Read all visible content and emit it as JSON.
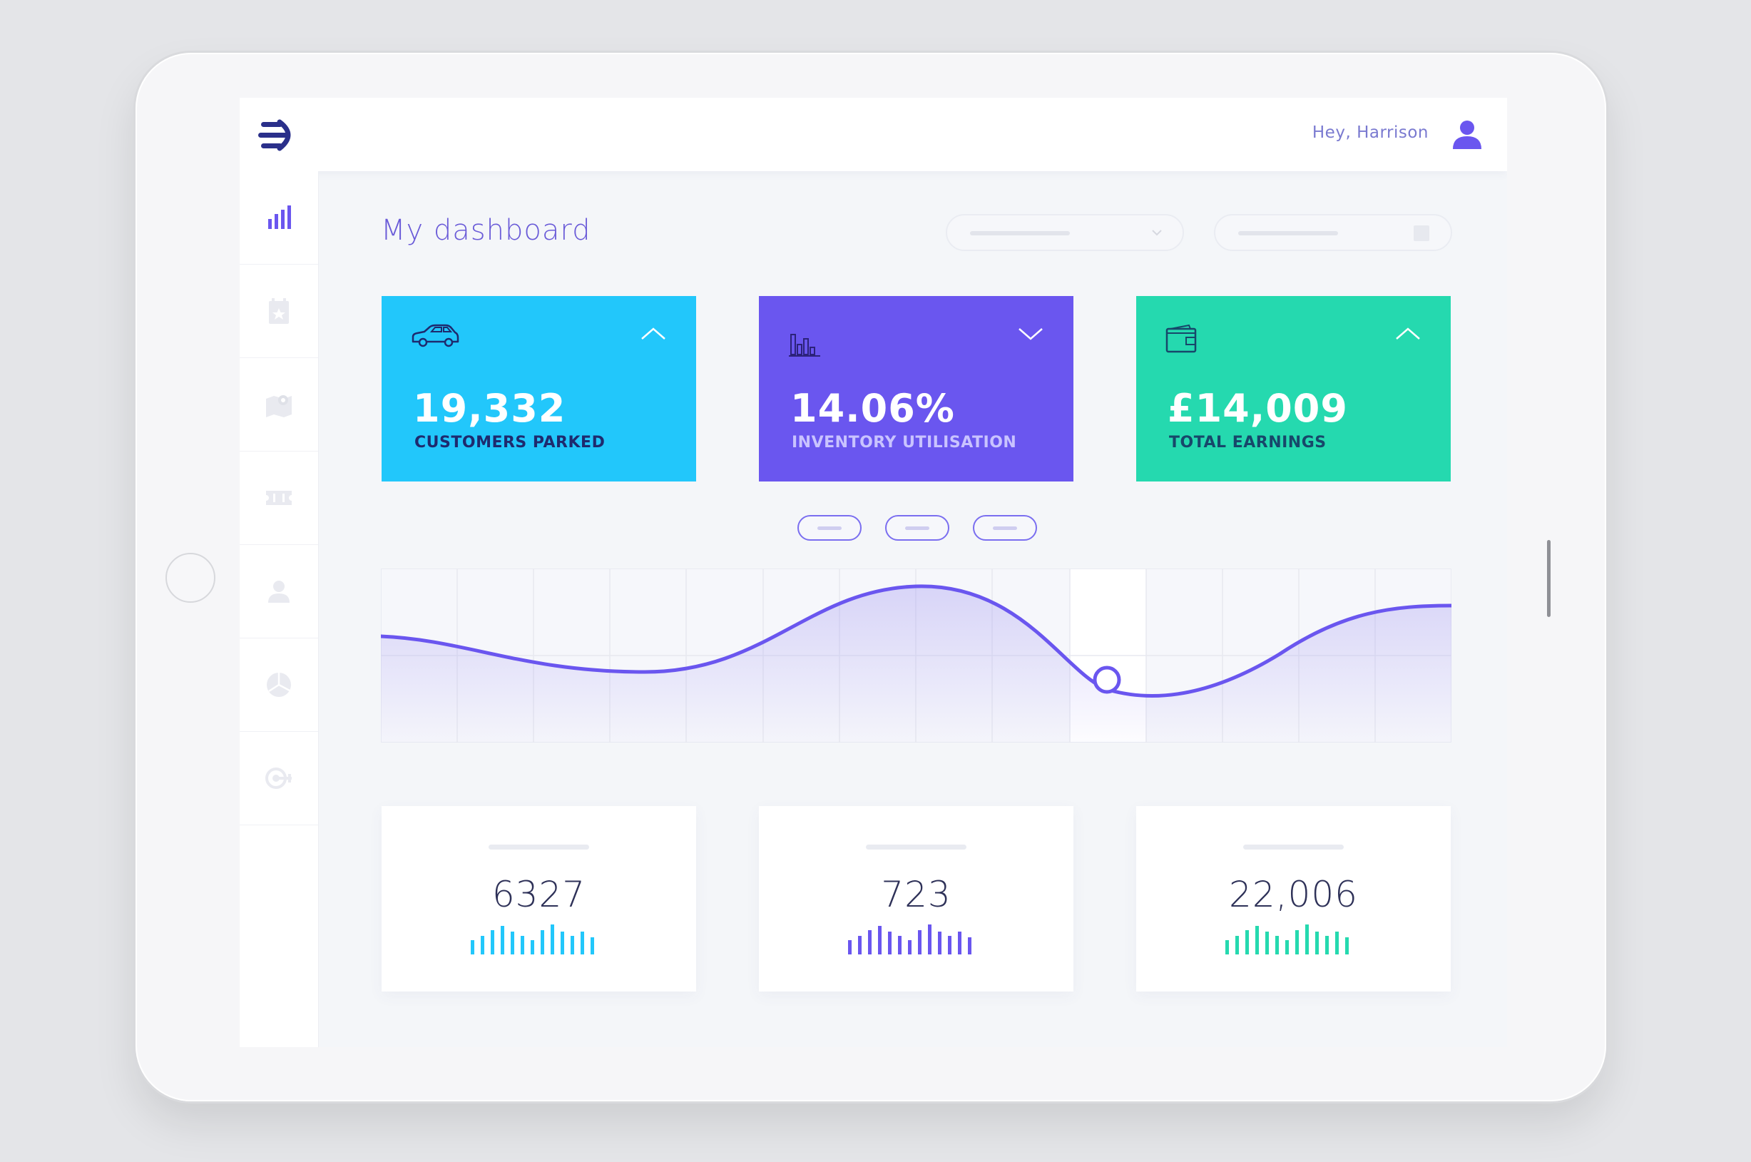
{
  "header": {
    "greeting": "Hey, Harrison"
  },
  "page": {
    "title": "My dashboard"
  },
  "sidebar": {
    "items": [
      {
        "name": "analytics",
        "icon": "bar-chart-icon",
        "active": true
      },
      {
        "name": "bookings",
        "icon": "star-calendar-icon",
        "active": false
      },
      {
        "name": "locations",
        "icon": "map-pin-icon",
        "active": false
      },
      {
        "name": "tickets",
        "icon": "ticket-icon",
        "active": false
      },
      {
        "name": "users",
        "icon": "user-icon",
        "active": false
      },
      {
        "name": "reports",
        "icon": "pie-chart-icon",
        "active": false
      },
      {
        "name": "goals",
        "icon": "target-icon",
        "active": false
      }
    ]
  },
  "stats": [
    {
      "value": "19,332",
      "label": "CUSTOMERS PARKED",
      "icon": "car-icon",
      "trend": "up",
      "color": "#22c7fb"
    },
    {
      "value": "14.06%",
      "label": "INVENTORY UTILISATION",
      "icon": "bar-chart-outline-icon",
      "trend": "down",
      "color": "#6a56ef"
    },
    {
      "value": "£14,009",
      "label": "TOTAL EARNINGS",
      "icon": "wallet-icon",
      "trend": "up",
      "color": "#25d9af"
    }
  ],
  "mini_stats": [
    {
      "value": "6327",
      "color": "#22c7fb"
    },
    {
      "value": "723",
      "color": "#6a56ef"
    },
    {
      "value": "22,006",
      "color": "#25d9af"
    }
  ],
  "colors": {
    "accent": "#6a56ef",
    "cyan": "#22c7fb",
    "green": "#25d9af"
  }
}
